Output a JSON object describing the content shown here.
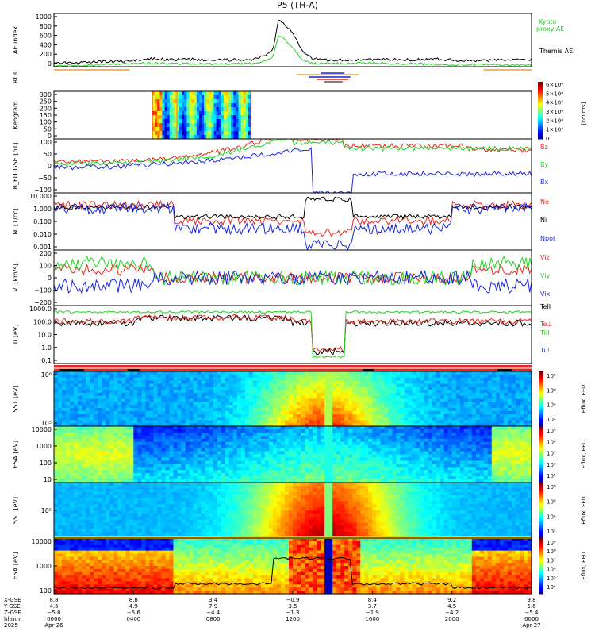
{
  "title": "P5 (TH-A)",
  "panels": {
    "ae": {
      "ylabel": "AE index",
      "yticks": [
        "1000",
        "800",
        "600",
        "400",
        "200",
        "0"
      ],
      "legend_kyoto": "Kyoto",
      "legend_proxy": "proxy AE",
      "legend_themis": "Themis AE"
    },
    "roi": {
      "ylabel": "ROI"
    },
    "keogram": {
      "ylabel": "Keogram",
      "yticks": [
        "300",
        "250",
        "200",
        "150",
        "100",
        "50",
        "0"
      ],
      "cbar_ticks": [
        "6×10⁴",
        "5×10⁴",
        "4×10⁴",
        "3×10⁴",
        "2×10⁴",
        "1×10⁴",
        "0"
      ],
      "cbar_label": "[counts]"
    },
    "bfield": {
      "ylabel": "B_FIT GSE [nT]",
      "yticks": [
        "100",
        "50",
        "0",
        "−50",
        "−100"
      ],
      "legend": [
        "Bz",
        "By",
        "Bx"
      ]
    },
    "density": {
      "ylabel": "Ni [1/cc]",
      "yticks": [
        "10.000",
        "1.000",
        "0.100",
        "0.010",
        "0.001"
      ],
      "legend": [
        "Ne",
        "Ni",
        "Npot"
      ]
    },
    "velocity": {
      "ylabel": "Vi [km/s]",
      "yticks": [
        "200",
        "100",
        "0",
        "−100",
        "−200"
      ],
      "legend": [
        "Viz",
        "Viy",
        "Vix"
      ]
    },
    "temp": {
      "ylabel": "Ti [eV]",
      "yticks": [
        "1000.0",
        "100.0",
        "10.0",
        "1.0",
        "0.1"
      ],
      "legend": [
        "TeII",
        "Te⊥",
        "TiII",
        "Ti⊥"
      ]
    },
    "sst_e": {
      "ylabel": "SST [eV]",
      "yticks": [
        "10⁶",
        "10⁵"
      ],
      "cbar_ticks": [
        "10⁸",
        "10⁶",
        "10⁴",
        "10²"
      ],
      "cbar_label": "Eflux, EFU"
    },
    "esa_e": {
      "ylabel": "ESA [eV]",
      "yticks": [
        "10000",
        "1000",
        "100",
        "10"
      ],
      "cbar_ticks": [
        "10⁹",
        "10⁸",
        "10⁷",
        "10⁶",
        "10⁵"
      ],
      "cbar_label": "Eflux, EFU"
    },
    "sst_i": {
      "ylabel": "SST [eV]",
      "yticks": [
        "10⁵"
      ],
      "cbar_ticks": [
        "10⁸",
        "10⁶",
        "10⁴",
        "10²"
      ],
      "cbar_label": "Eflux, EFU"
    },
    "esa_i": {
      "ylabel": "ESA [eV]",
      "yticks": [
        "10000",
        "1000",
        "100"
      ],
      "cbar_ticks": [
        "10⁹",
        "10⁸",
        "10⁷",
        "10⁶",
        "10⁵",
        "10⁴"
      ],
      "cbar_label": "Eflux, EFU"
    }
  },
  "xaxis": {
    "row_labels": [
      "X-GSE",
      "Y-GSE",
      "Z-GSE",
      "hhmm",
      "2025"
    ],
    "ticks": [
      {
        "x": "8.8",
        "y": "4.5",
        "z": "−5.8",
        "t": "0000",
        "d": "Apr 26"
      },
      {
        "x": "8.8",
        "y": "4.9",
        "z": "−5.6",
        "t": "0400",
        "d": ""
      },
      {
        "x": "3.4",
        "y": "7.9",
        "z": "−4.4",
        "t": "0800",
        "d": ""
      },
      {
        "x": "−0.9",
        "y": "3.5",
        "z": "−1.3",
        "t": "1200",
        "d": ""
      },
      {
        "x": "8.4",
        "y": "3.7",
        "z": "−1.9",
        "t": "1600",
        "d": ""
      },
      {
        "x": "9.2",
        "y": "4.5",
        "z": "−4.2",
        "t": "2000",
        "d": ""
      },
      {
        "x": "9.8",
        "y": "5.6",
        "z": "−5.4",
        "t": "0000",
        "d": "Apr 27"
      }
    ]
  },
  "colors": {
    "red": "#e8241c",
    "green": "#1fd21f",
    "blue": "#1626e0",
    "black": "#000000",
    "orange": "#f0a020"
  },
  "chart_data": {
    "type": "line",
    "title": "P5 (TH-A)",
    "x_range_hours": [
      0,
      24
    ],
    "ae_ylim": [
      0,
      1000
    ],
    "themis_ae": {
      "name": "Themis AE",
      "x": [
        0,
        1,
        2,
        3,
        4,
        5,
        6,
        7,
        8,
        9,
        10,
        10.5,
        11,
        11.3,
        11.6,
        12,
        12.5,
        13,
        14,
        15,
        16,
        17,
        18,
        19,
        20,
        21,
        22,
        23,
        24
      ],
      "y": [
        60,
        80,
        90,
        100,
        110,
        150,
        130,
        140,
        120,
        130,
        130,
        200,
        300,
        900,
        800,
        650,
        300,
        150,
        120,
        130,
        140,
        130,
        130,
        150,
        130,
        110,
        120,
        130,
        140
      ]
    },
    "kyoto_ae": {
      "name": "Kyoto proxy AE",
      "x": [
        0,
        2,
        4,
        6,
        8,
        10,
        10.5,
        11,
        11.3,
        11.6,
        12,
        12.5,
        13,
        16,
        20,
        24
      ],
      "y": [
        20,
        30,
        70,
        60,
        50,
        60,
        90,
        200,
        600,
        500,
        350,
        120,
        60,
        70,
        40,
        30
      ]
    }
  }
}
